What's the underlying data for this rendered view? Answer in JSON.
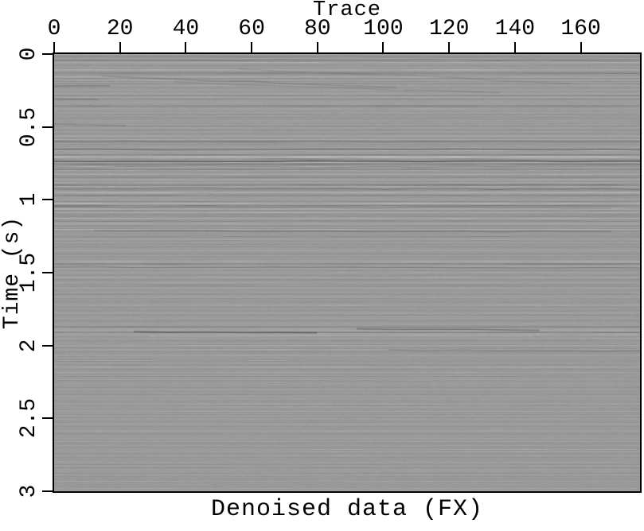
{
  "figure": {
    "caption": "Denoised data (FX)"
  },
  "chart_data": {
    "type": "heatmap",
    "title": "Trace",
    "caption": "Denoised data (FX)",
    "colormap": "grayscale",
    "background_value": "#9a9a9a",
    "frame_color": "#000000",
    "x_axis": {
      "label": "Trace",
      "position": "top",
      "range": [
        0,
        178
      ],
      "ticks": [
        0,
        20,
        40,
        60,
        80,
        100,
        120,
        140,
        160
      ]
    },
    "y_axis": {
      "label": "Time (s)",
      "position": "left",
      "direction": "down",
      "range": [
        0,
        3
      ],
      "ticks": [
        {
          "v": 0,
          "label": "0"
        },
        {
          "v": 0.5,
          "label": "0.5"
        },
        {
          "v": 1,
          "label": "1"
        },
        {
          "v": 1.5,
          "label": "1.5"
        },
        {
          "v": 2,
          "label": "2"
        },
        {
          "v": 2.5,
          "label": "2.5"
        },
        {
          "v": 3,
          "label": "3"
        }
      ]
    },
    "events": [
      {
        "time": 0.05,
        "amp": 0.35,
        "width": 0.04
      },
      {
        "time": 0.2,
        "amp": 0.45,
        "width": 0.1
      },
      {
        "time": 0.33,
        "amp": 0.3,
        "width": 0.08
      },
      {
        "time": 0.63,
        "amp": 0.55,
        "width": 0.05
      },
      {
        "time": 0.73,
        "amp": 1.0,
        "width": 0.05
      },
      {
        "time": 0.9,
        "amp": 0.6,
        "width": 0.08
      },
      {
        "time": 1.05,
        "amp": 0.45,
        "width": 0.07
      },
      {
        "time": 1.22,
        "amp": 0.45,
        "width": 0.08
      },
      {
        "time": 1.45,
        "amp": 0.4,
        "width": 0.07
      },
      {
        "time": 1.62,
        "amp": 0.25,
        "width": 0.06
      },
      {
        "time": 1.92,
        "amp": 0.5,
        "width": 0.05
      },
      {
        "time": 2.05,
        "amp": 0.28,
        "width": 0.04
      }
    ]
  }
}
